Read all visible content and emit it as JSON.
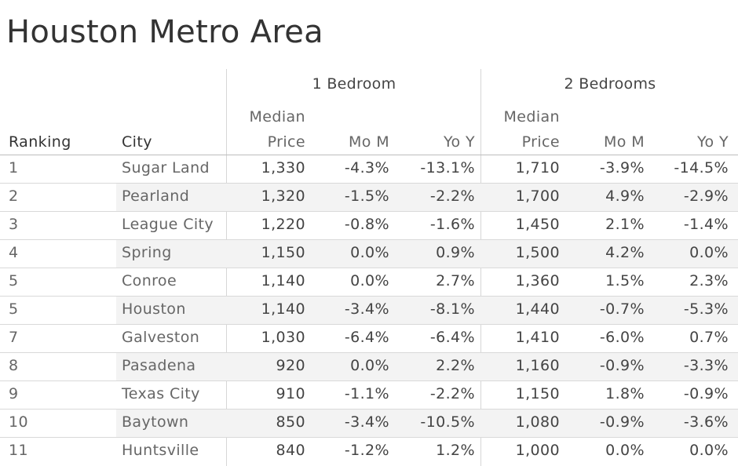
{
  "title": "Houston Metro Area",
  "groups": {
    "one_bed": "1 Bedroom",
    "two_bed": "2 Bedrooms"
  },
  "headers": {
    "ranking": "Ranking",
    "city": "City",
    "median_1": "Median",
    "price": "Price",
    "mom": "Mo M",
    "yoy": "Yo Y"
  },
  "chart_data": {
    "type": "table",
    "title": "Houston Metro Area",
    "columns": [
      "Ranking",
      "City",
      "1 Bedroom Median Price",
      "1 Bedroom Mo M",
      "1 Bedroom Yo Y",
      "2 Bedrooms Median Price",
      "2 Bedrooms Mo M",
      "2 Bedrooms Yo Y"
    ],
    "rows": [
      {
        "rank": "1",
        "city": "Sugar Land",
        "p1": "1,330",
        "m1": "-4.3%",
        "y1": "-13.1%",
        "p2": "1,710",
        "m2": "-3.9%",
        "y2": "-14.5%"
      },
      {
        "rank": "2",
        "city": "Pearland",
        "p1": "1,320",
        "m1": "-1.5%",
        "y1": "-2.2%",
        "p2": "1,700",
        "m2": "4.9%",
        "y2": "-2.9%"
      },
      {
        "rank": "3",
        "city": "League City",
        "p1": "1,220",
        "m1": "-0.8%",
        "y1": "-1.6%",
        "p2": "1,450",
        "m2": "2.1%",
        "y2": "-1.4%"
      },
      {
        "rank": "4",
        "city": "Spring",
        "p1": "1,150",
        "m1": "0.0%",
        "y1": "0.9%",
        "p2": "1,500",
        "m2": "4.2%",
        "y2": "0.0%"
      },
      {
        "rank": "5",
        "city": "Conroe",
        "p1": "1,140",
        "m1": "0.0%",
        "y1": "2.7%",
        "p2": "1,360",
        "m2": "1.5%",
        "y2": "2.3%"
      },
      {
        "rank": "5",
        "city": "Houston",
        "p1": "1,140",
        "m1": "-3.4%",
        "y1": "-8.1%",
        "p2": "1,440",
        "m2": "-0.7%",
        "y2": "-5.3%"
      },
      {
        "rank": "7",
        "city": "Galveston",
        "p1": "1,030",
        "m1": "-6.4%",
        "y1": "-6.4%",
        "p2": "1,410",
        "m2": "-6.0%",
        "y2": "0.7%"
      },
      {
        "rank": "8",
        "city": "Pasadena",
        "p1": "920",
        "m1": "0.0%",
        "y1": "2.2%",
        "p2": "1,160",
        "m2": "-0.9%",
        "y2": "-3.3%"
      },
      {
        "rank": "9",
        "city": "Texas City",
        "p1": "910",
        "m1": "-1.1%",
        "y1": "-2.2%",
        "p2": "1,150",
        "m2": "1.8%",
        "y2": "-0.9%"
      },
      {
        "rank": "10",
        "city": "Baytown",
        "p1": "850",
        "m1": "-3.4%",
        "y1": "-10.5%",
        "p2": "1,080",
        "m2": "-0.9%",
        "y2": "-3.6%"
      },
      {
        "rank": "11",
        "city": "Huntsville",
        "p1": "840",
        "m1": "-1.2%",
        "y1": "1.2%",
        "p2": "1,000",
        "m2": "0.0%",
        "y2": "0.0%"
      }
    ]
  }
}
